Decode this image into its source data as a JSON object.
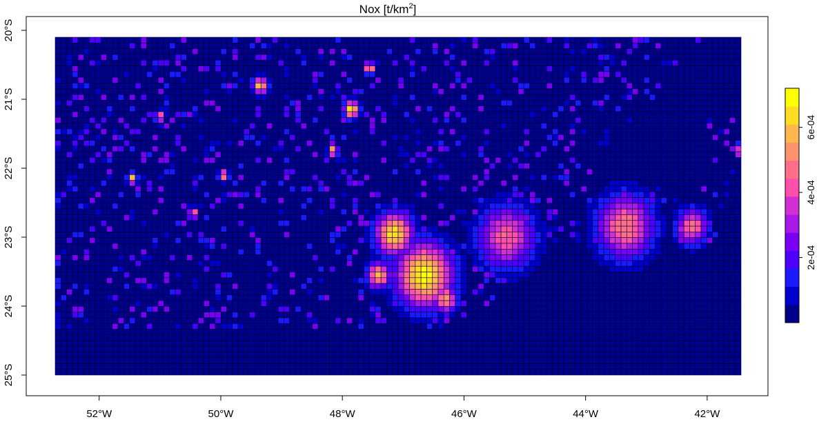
{
  "chart_data": {
    "type": "heatmap",
    "title": "Nox [t/km",
    "title_superscript": "2",
    "title_suffix": "]",
    "x_range": [
      -53.2,
      -41.0
    ],
    "y_range": [
      -25.3,
      -19.8
    ],
    "x_ticks": [
      {
        "value": -52,
        "label": "52°W"
      },
      {
        "value": -50,
        "label": "50°W"
      },
      {
        "value": -48,
        "label": "48°W"
      },
      {
        "value": -46,
        "label": "46°W"
      },
      {
        "value": -44,
        "label": "44°W"
      },
      {
        "value": -42,
        "label": "42°W"
      }
    ],
    "y_ticks": [
      {
        "value": -20,
        "label": "20°S"
      },
      {
        "value": -21,
        "label": "21°S"
      },
      {
        "value": -22,
        "label": "22°S"
      },
      {
        "value": -23,
        "label": "23°S"
      },
      {
        "value": -24,
        "label": "24°S"
      },
      {
        "value": -25,
        "label": "25°S"
      }
    ],
    "grid": true,
    "legend_placement": "right",
    "colorbar": {
      "range": [
        0,
        0.00072
      ],
      "ticks": [
        {
          "value": 0.0002,
          "label": "2e-04"
        },
        {
          "value": 0.0004,
          "label": "4e-04"
        },
        {
          "value": 0.0006,
          "label": "6e-04"
        }
      ],
      "colors": [
        "#00008B",
        "#0000CD",
        "#1A1AFF",
        "#4B00FF",
        "#7A00F5",
        "#A81AE8",
        "#D22ED6",
        "#FF4FA8",
        "#FF6F8A",
        "#FF936E",
        "#FFB84D",
        "#FFDD22",
        "#FFFF00"
      ]
    },
    "hotspots": [
      {
        "lon": -46.65,
        "lat": -23.55,
        "value": 0.0007,
        "extent": 0.45
      },
      {
        "lon": -47.15,
        "lat": -22.95,
        "value": 0.00066,
        "extent": 0.3
      },
      {
        "lon": -47.4,
        "lat": -23.55,
        "value": 0.0006,
        "extent": 0.18
      },
      {
        "lon": -46.3,
        "lat": -23.9,
        "value": 0.00055,
        "extent": 0.18
      },
      {
        "lon": -43.35,
        "lat": -22.85,
        "value": 0.0005,
        "extent": 0.45
      },
      {
        "lon": -45.3,
        "lat": -23.0,
        "value": 0.00045,
        "extent": 0.45
      },
      {
        "lon": -47.85,
        "lat": -21.15,
        "value": 0.0007,
        "extent": 0.12
      },
      {
        "lon": -49.35,
        "lat": -20.8,
        "value": 0.00062,
        "extent": 0.12
      },
      {
        "lon": -47.55,
        "lat": -20.55,
        "value": 0.00065,
        "extent": 0.08
      },
      {
        "lon": -48.15,
        "lat": -21.75,
        "value": 0.0006,
        "extent": 0.08
      },
      {
        "lon": -49.95,
        "lat": -22.1,
        "value": 0.00055,
        "extent": 0.08
      },
      {
        "lon": -51.45,
        "lat": -22.15,
        "value": 0.0006,
        "extent": 0.08
      },
      {
        "lon": -42.25,
        "lat": -22.85,
        "value": 0.00048,
        "extent": 0.25
      },
      {
        "lon": -41.45,
        "lat": -21.75,
        "value": 0.00055,
        "extent": 0.08
      },
      {
        "lon": -50.45,
        "lat": -22.65,
        "value": 0.0005,
        "extent": 0.08
      },
      {
        "lon": -51.0,
        "lat": -21.25,
        "value": 0.00052,
        "extent": 0.08
      }
    ]
  }
}
